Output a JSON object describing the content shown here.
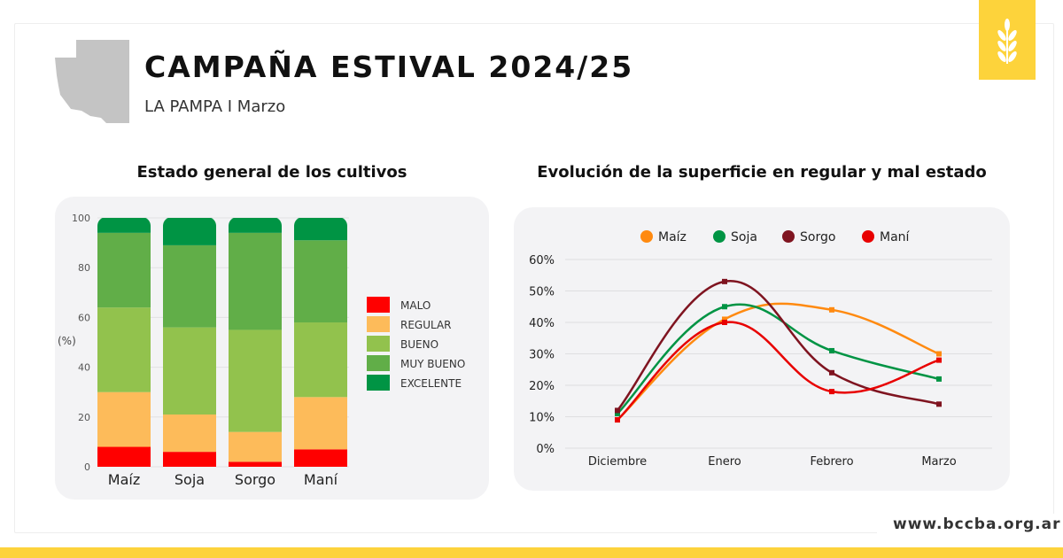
{
  "header": {
    "title": "CAMPAÑA ESTIVAL 2024/25",
    "subtitle": "LA PAMPA I Marzo"
  },
  "logo": {
    "icon": "wheat-icon",
    "color": "#fdd33b"
  },
  "footer": {
    "url": "www.bccba.org.ar"
  },
  "chart_data": [
    {
      "type": "bar",
      "stacked": true,
      "title": "Estado general de los cultivos",
      "ylabel": "(%)",
      "ylim": [
        0,
        100
      ],
      "yticks": [
        0,
        20,
        40,
        60,
        80,
        100
      ],
      "grid": true,
      "legend_position": "right",
      "categories": [
        "Maíz",
        "Soja",
        "Sorgo",
        "Maní"
      ],
      "series": [
        {
          "name": "MALO",
          "color": "#ff0000",
          "values": [
            8,
            6,
            2,
            7
          ]
        },
        {
          "name": "REGULAR",
          "color": "#fdbb5a",
          "values": [
            22,
            15,
            12,
            21
          ]
        },
        {
          "name": "BUENO",
          "color": "#92c24d",
          "values": [
            34,
            35,
            41,
            30
          ]
        },
        {
          "name": "MUY BUENO",
          "color": "#61ae48",
          "values": [
            30,
            33,
            39,
            33
          ]
        },
        {
          "name": "EXCELENTE",
          "color": "#009444",
          "values": [
            6,
            11,
            6,
            9
          ]
        }
      ]
    },
    {
      "type": "line",
      "title": "Evolución de la superficie en regular y mal estado",
      "ylim": [
        0,
        60
      ],
      "yticks": [
        "0%",
        "10%",
        "20%",
        "30%",
        "40%",
        "50%",
        "60%"
      ],
      "grid": true,
      "legend_position": "top",
      "categories": [
        "Diciembre",
        "Enero",
        "Febrero",
        "Marzo"
      ],
      "series": [
        {
          "name": "Maíz",
          "color": "#ff8a10",
          "values": [
            9,
            41,
            44,
            30
          ]
        },
        {
          "name": "Soja",
          "color": "#009444",
          "values": [
            11,
            45,
            31,
            22
          ]
        },
        {
          "name": "Sorgo",
          "color": "#7f1420",
          "values": [
            12,
            53,
            24,
            14
          ]
        },
        {
          "name": "Maní",
          "color": "#e80000",
          "values": [
            9,
            40,
            18,
            28
          ]
        }
      ]
    }
  ]
}
